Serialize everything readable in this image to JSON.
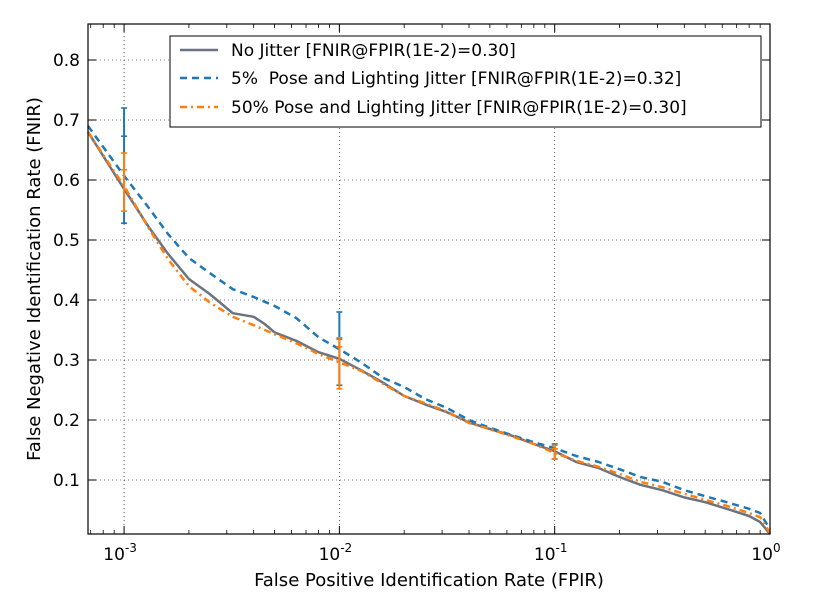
{
  "chart_data": {
    "type": "line",
    "title": "",
    "xlabel": "False Positive Identification Rate (FPIR)",
    "ylabel": "False Negative Identification Rate (FNIR)",
    "xscale": "log",
    "xlim": [
      0.00068,
      1.0
    ],
    "ylim": [
      0.01,
      0.86
    ],
    "grid": true,
    "legend_position": "top-right",
    "x_ticks": [
      {
        "value": 0.001,
        "base": "10",
        "exp": "-3"
      },
      {
        "value": 0.01,
        "base": "10",
        "exp": "-2"
      },
      {
        "value": 0.1,
        "base": "10",
        "exp": "-1"
      },
      {
        "value": 1.0,
        "base": "10",
        "exp": "0"
      }
    ],
    "y_ticks": [
      {
        "value": 0.1,
        "label": "0.1"
      },
      {
        "value": 0.2,
        "label": "0.2"
      },
      {
        "value": 0.3,
        "label": "0.3"
      },
      {
        "value": 0.4,
        "label": "0.4"
      },
      {
        "value": 0.5,
        "label": "0.5"
      },
      {
        "value": 0.6,
        "label": "0.6"
      },
      {
        "value": 0.7,
        "label": "0.7"
      },
      {
        "value": 0.8,
        "label": "0.8"
      }
    ],
    "series": [
      {
        "name": "No Jitter [FNIR@FPIR(1E-2)=0.30]",
        "color": "#6b7280",
        "dash": "solid",
        "x": [
          0.00068,
          0.001,
          0.0013,
          0.0016,
          0.002,
          0.0025,
          0.0032,
          0.004,
          0.0045,
          0.005,
          0.0063,
          0.008,
          0.01,
          0.0126,
          0.016,
          0.02,
          0.025,
          0.0316,
          0.04,
          0.05,
          0.063,
          0.08,
          0.1,
          0.126,
          0.16,
          0.2,
          0.25,
          0.316,
          0.4,
          0.5,
          0.63,
          0.8,
          0.9,
          1.0
        ],
        "y": [
          0.68,
          0.585,
          0.522,
          0.477,
          0.435,
          0.41,
          0.378,
          0.372,
          0.36,
          0.346,
          0.332,
          0.313,
          0.302,
          0.283,
          0.262,
          0.24,
          0.226,
          0.213,
          0.196,
          0.185,
          0.174,
          0.16,
          0.148,
          0.13,
          0.12,
          0.105,
          0.092,
          0.083,
          0.071,
          0.063,
          0.052,
          0.04,
          0.03,
          0.01
        ]
      },
      {
        "name": "5%  Pose and Lighting Jitter [FNIR@FPIR(1E-2)=0.32]",
        "color": "#1f77b4",
        "dash": "dashed",
        "x": [
          0.00068,
          0.001,
          0.0013,
          0.0016,
          0.002,
          0.0025,
          0.0032,
          0.004,
          0.005,
          0.0063,
          0.008,
          0.01,
          0.0126,
          0.016,
          0.02,
          0.025,
          0.0316,
          0.04,
          0.05,
          0.063,
          0.08,
          0.1,
          0.126,
          0.16,
          0.2,
          0.25,
          0.316,
          0.4,
          0.5,
          0.63,
          0.8,
          0.9,
          1.0
        ],
        "y": [
          0.69,
          0.607,
          0.554,
          0.51,
          0.47,
          0.445,
          0.418,
          0.405,
          0.39,
          0.37,
          0.338,
          0.318,
          0.296,
          0.27,
          0.255,
          0.235,
          0.22,
          0.2,
          0.187,
          0.175,
          0.163,
          0.153,
          0.14,
          0.13,
          0.118,
          0.105,
          0.097,
          0.083,
          0.073,
          0.063,
          0.052,
          0.045,
          0.018
        ]
      },
      {
        "name": "50% Pose and Lighting Jitter [FNIR@FPIR(1E-2)=0.30]",
        "color": "#ff7f0e",
        "dash": "dashdot",
        "x": [
          0.00068,
          0.001,
          0.0013,
          0.0016,
          0.002,
          0.0025,
          0.0032,
          0.004,
          0.005,
          0.0063,
          0.008,
          0.01,
          0.0126,
          0.016,
          0.02,
          0.025,
          0.0316,
          0.04,
          0.05,
          0.063,
          0.08,
          0.1,
          0.126,
          0.16,
          0.2,
          0.25,
          0.316,
          0.4,
          0.5,
          0.63,
          0.8,
          0.9,
          1.0
        ],
        "y": [
          0.68,
          0.59,
          0.52,
          0.468,
          0.423,
          0.396,
          0.372,
          0.358,
          0.343,
          0.328,
          0.31,
          0.296,
          0.282,
          0.26,
          0.24,
          0.228,
          0.214,
          0.195,
          0.185,
          0.173,
          0.16,
          0.145,
          0.132,
          0.122,
          0.11,
          0.097,
          0.088,
          0.077,
          0.067,
          0.057,
          0.045,
          0.038,
          0.012
        ]
      }
    ],
    "error_bars": [
      {
        "series": 1,
        "x": 0.001,
        "low": 0.528,
        "high": 0.72,
        "mid_tick": 0.673
      },
      {
        "series": 1,
        "x": 0.01,
        "low": 0.258,
        "high": 0.38,
        "mid_tick": 0.335
      },
      {
        "series": 1,
        "x": 0.1,
        "low": 0.135,
        "high": 0.16,
        "mid_tick": 0.152
      },
      {
        "series": 2,
        "x": 0.001,
        "low": 0.548,
        "high": 0.645,
        "mid_tick": 0.617
      },
      {
        "series": 2,
        "x": 0.01,
        "low": 0.252,
        "high": 0.337,
        "mid_tick": 0.322
      },
      {
        "series": 2,
        "x": 0.1,
        "low": 0.135,
        "high": 0.158,
        "mid_tick": 0.152
      }
    ]
  }
}
